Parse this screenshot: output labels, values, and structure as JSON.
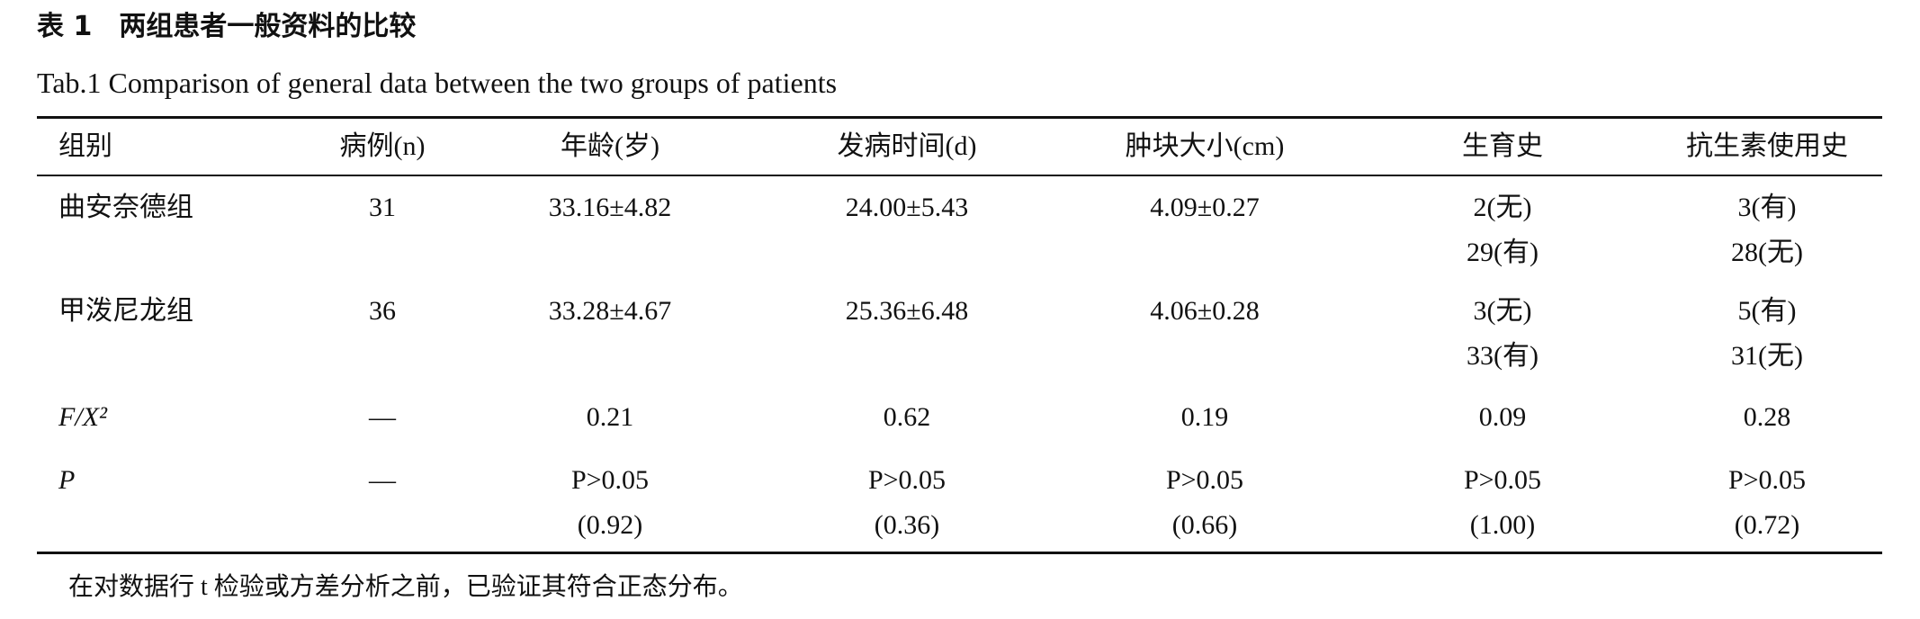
{
  "caption": {
    "title_cn": "表 1　两组患者一般资料的比较",
    "title_en": "Tab.1 Comparison of general data between the two groups of patients"
  },
  "table": {
    "header": [
      "组别",
      "病例(n)",
      "年龄(岁)",
      "发病时间(d)",
      "肿块大小(cm)",
      "生育史",
      "抗生素使用史"
    ],
    "rows": [
      {
        "cells": [
          "曲安奈德组",
          "31",
          "33.16±4.82",
          "24.00±5.43",
          "4.09±0.27",
          [
            "2(无)",
            "29(有)"
          ],
          [
            "3(有)",
            "28(无)"
          ]
        ]
      },
      {
        "cells": [
          "甲泼尼龙组",
          "36",
          "33.28±4.67",
          "25.36±6.48",
          "4.06±0.28",
          [
            "3(无)",
            "33(有)"
          ],
          [
            "5(有)",
            "31(无)"
          ]
        ]
      },
      {
        "cells": [
          "F/X²",
          "—",
          "0.21",
          "0.62",
          "0.19",
          "0.09",
          "0.28"
        ]
      },
      {
        "cells": [
          "P",
          "—",
          [
            "P>0.05",
            "(0.92)"
          ],
          [
            "P>0.05",
            "(0.36)"
          ],
          [
            "P>0.05",
            "(0.66)"
          ],
          [
            "P>0.05",
            "(1.00)"
          ],
          [
            "P>0.05",
            "(0.72)"
          ]
        ]
      }
    ]
  },
  "note": "在对数据行 t 检验或方差分析之前，已验证其符合正态分布。"
}
